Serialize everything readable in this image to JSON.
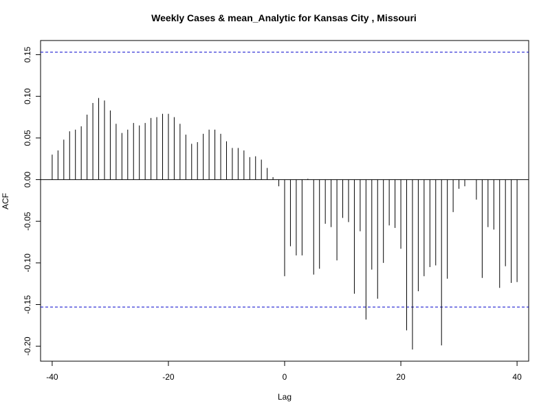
{
  "chart_data": {
    "type": "bar",
    "title": "Weekly Cases & mean_Analytic for Kansas City , Missouri",
    "xlabel": "Lag",
    "ylabel": "ACF",
    "xlim": [
      -42,
      42
    ],
    "ylim": [
      -0.218,
      0.167
    ],
    "xticks": [
      -40,
      -20,
      0,
      20,
      40
    ],
    "xtick_labels": [
      "-40",
      "-20",
      "0",
      "20",
      "40"
    ],
    "yticks": [
      -0.2,
      -0.15,
      -0.1,
      -0.05,
      0.0,
      0.05,
      0.1,
      0.15
    ],
    "ytick_labels": [
      "-0.20",
      "-0.15",
      "-0.10",
      "-0.05",
      "0.00",
      "0.05",
      "0.10",
      "0.15"
    ],
    "confidence_bounds": [
      0.153,
      -0.153
    ],
    "zero_line": 0,
    "lags": [
      -40,
      -39,
      -38,
      -37,
      -36,
      -35,
      -34,
      -33,
      -32,
      -31,
      -30,
      -29,
      -28,
      -27,
      -26,
      -25,
      -24,
      -23,
      -22,
      -21,
      -20,
      -19,
      -18,
      -17,
      -16,
      -15,
      -14,
      -13,
      -12,
      -11,
      -10,
      -9,
      -8,
      -7,
      -6,
      -5,
      -4,
      -3,
      -2,
      -1,
      0,
      1,
      2,
      3,
      4,
      5,
      6,
      7,
      8,
      9,
      10,
      11,
      12,
      13,
      14,
      15,
      16,
      17,
      18,
      19,
      20,
      21,
      22,
      23,
      24,
      25,
      26,
      27,
      28,
      29,
      30,
      31,
      32,
      33,
      34,
      35,
      36,
      37,
      38,
      39,
      40
    ],
    "values": [
      0.03,
      0.035,
      0.048,
      0.058,
      0.06,
      0.064,
      0.078,
      0.092,
      0.098,
      0.095,
      0.083,
      0.067,
      0.056,
      0.06,
      0.068,
      0.065,
      0.068,
      0.074,
      0.075,
      0.079,
      0.079,
      0.075,
      0.067,
      0.054,
      0.043,
      0.045,
      0.055,
      0.06,
      0.06,
      0.055,
      0.046,
      0.038,
      0.038,
      0.035,
      0.027,
      0.028,
      0.024,
      0.014,
      0.003,
      -0.008,
      -0.116,
      -0.08,
      -0.091,
      -0.091,
      0.001,
      -0.114,
      -0.107,
      -0.053,
      -0.057,
      -0.097,
      -0.046,
      -0.051,
      -0.137,
      -0.062,
      -0.168,
      -0.108,
      -0.143,
      -0.1,
      -0.055,
      -0.058,
      -0.083,
      -0.181,
      -0.204,
      -0.134,
      -0.116,
      -0.105,
      -0.103,
      -0.199,
      -0.119,
      -0.039,
      -0.011,
      -0.008,
      0.0,
      -0.024,
      -0.118,
      -0.057,
      -0.06,
      -0.13,
      -0.104,
      -0.124,
      -0.123
    ],
    "colors": {
      "bars": "#000000",
      "confidence": "#0000cc",
      "axis": "#000000"
    }
  }
}
